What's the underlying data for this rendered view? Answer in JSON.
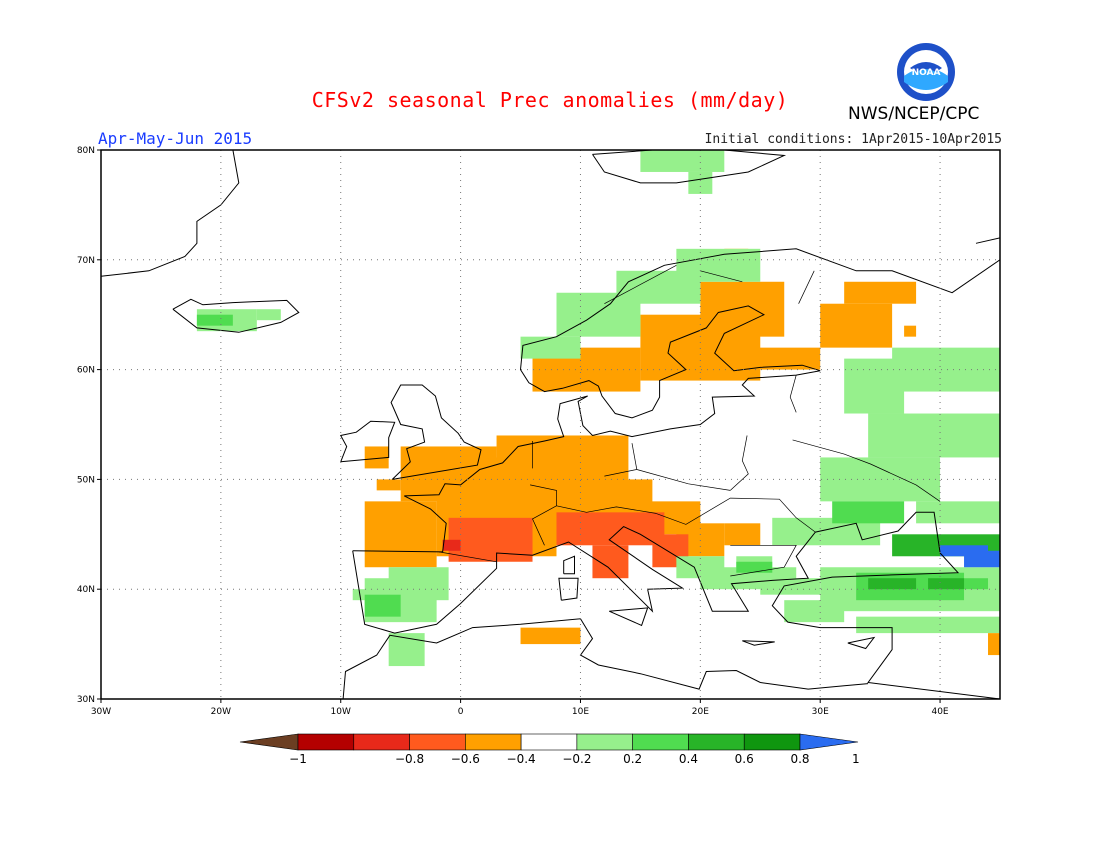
{
  "header": {
    "title": "CFSv2 seasonal Prec anomalies (mm/day)",
    "period": "Apr-May-Jun 2015",
    "initial_conditions": "Initial conditions: 1Apr2015-10Apr2015",
    "agency": "NWS/NCEP/CPC",
    "logo_text": "NOAA"
  },
  "map": {
    "lon_range": [
      -30,
      45
    ],
    "lat_range": [
      30,
      80
    ],
    "x_ticks": [
      "30W",
      "20W",
      "10W",
      "0",
      "10E",
      "20E",
      "30E",
      "40E"
    ],
    "y_ticks": [
      "30N",
      "40N",
      "50N",
      "60N",
      "70N",
      "80N"
    ]
  },
  "colorbar": {
    "labels": [
      "-1",
      "-0.8",
      "-0.6",
      "-0.4",
      "-0.2",
      "0.2",
      "0.4",
      "0.6",
      "0.8",
      "1"
    ],
    "colors": [
      "#6b3e22",
      "#b40000",
      "#e8291a",
      "#ff5a1e",
      "#ffa000",
      "#ffffff",
      "#96f08c",
      "#50dc50",
      "#28b428",
      "#0f960f",
      "#2a6cf0"
    ]
  }
}
